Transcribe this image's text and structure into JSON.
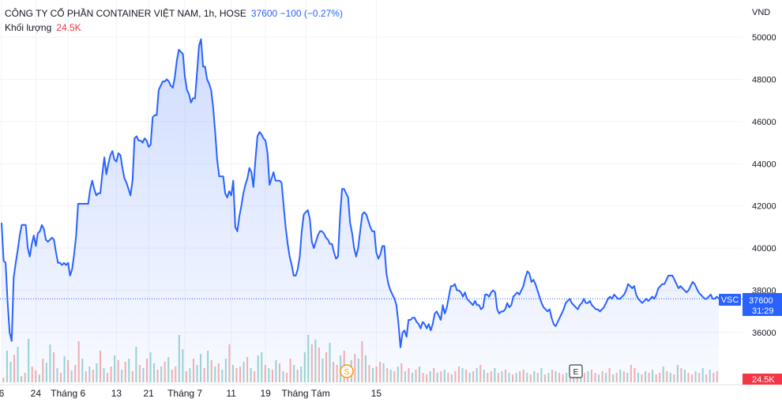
{
  "header": {
    "symbol_title": "CÔNG TY CỔ PHẦN CONTAINER VIỆT NAM, 1h, HOSE",
    "price_info": "37600  −100 (−0.27%)",
    "volume_label": "Khối lượng",
    "volume_value": "24.5K"
  },
  "currency": "VND",
  "current": {
    "ticker": "VSC",
    "price": "37600",
    "countdown": "31:29",
    "volume": "24.5K"
  },
  "markers": {
    "split": "S",
    "earnings": "E"
  },
  "colors": {
    "line": "#2962ff",
    "up_volume": "#26a69a",
    "down_volume": "#ef5350",
    "grid": "#f0f3fa",
    "axis_text": "#131722"
  },
  "chart_data": {
    "type": "area",
    "y_ticks": [
      "50000",
      "48000",
      "46000",
      "44000",
      "42000",
      "40000",
      "38000",
      "36000"
    ],
    "ylim": [
      34000,
      50000
    ],
    "x_ticks": [
      "6",
      "24",
      "Tháng 6",
      "13",
      "21",
      "Tháng 7",
      "11",
      "19",
      "Tháng Tám",
      "15"
    ],
    "x_tick_index": [
      0,
      17,
      33,
      57,
      73,
      91,
      114,
      131,
      151,
      186
    ],
    "grid": true,
    "price": [
      41200,
      39400,
      39300,
      37400,
      36000,
      35600,
      38600,
      39300,
      39900,
      40600,
      41100,
      41100,
      41100,
      40000,
      39600,
      40200,
      40600,
      40100,
      40700,
      40800,
      41100,
      40900,
      40400,
      40300,
      40400,
      40500,
      40400,
      39800,
      39300,
      39300,
      39200,
      39300,
      39200,
      39300,
      38700,
      39000,
      39700,
      40600,
      42100,
      42100,
      42100,
      42100,
      42100,
      42100,
      42800,
      43200,
      42800,
      42500,
      42600,
      42600,
      43500,
      44300,
      43500,
      44000,
      44400,
      44600,
      44200,
      44100,
      44500,
      44400,
      43800,
      43300,
      43100,
      42800,
      42500,
      43200,
      45200,
      45300,
      45100,
      45100,
      45000,
      45200,
      45100,
      44800,
      44900,
      46200,
      46300,
      46300,
      47500,
      47700,
      47900,
      47900,
      48000,
      47900,
      47700,
      47600,
      48100,
      48900,
      49400,
      49300,
      49200,
      48100,
      47500,
      47300,
      46900,
      47100,
      47100,
      48300,
      49600,
      49900,
      48600,
      48600,
      48000,
      47800,
      47500,
      46700,
      45500,
      44200,
      43400,
      43400,
      43400,
      42600,
      42400,
      42700,
      42500,
      43200,
      41000,
      40800,
      41500,
      42000,
      42600,
      43000,
      43300,
      43800,
      43600,
      42900,
      44200,
      45300,
      45500,
      45400,
      45200,
      45100,
      44500,
      43000,
      43300,
      43600,
      43200,
      43200,
      43200,
      43100,
      42000,
      41000,
      40200,
      39600,
      39200,
      38700,
      38700,
      39000,
      39600,
      40800,
      41600,
      41700,
      41800,
      41400,
      40300,
      40000,
      40300,
      40600,
      40800,
      40800,
      40700,
      40500,
      40400,
      40200,
      40200,
      39800,
      39500,
      39600,
      41500,
      42800,
      42800,
      42600,
      42400,
      41200,
      40700,
      40000,
      39600,
      40000,
      40800,
      41600,
      41700,
      41600,
      41300,
      41000,
      40800,
      40800,
      39800,
      39500,
      39700,
      40100,
      40100,
      38800,
      38300,
      38000,
      37800,
      37600,
      37300,
      36400,
      35300,
      36000,
      36100,
      35800,
      36600,
      36600,
      36700,
      36700,
      36500,
      36400,
      36200,
      36500,
      36400,
      36200,
      36400,
      36100,
      36400,
      36900,
      37000,
      36800,
      36600,
      37300,
      36900,
      37200,
      37700,
      38200,
      38200,
      38300,
      38000,
      38000,
      37900,
      37700,
      37900,
      37600,
      37500,
      37400,
      37300,
      37500,
      37300,
      37300,
      37100,
      37200,
      37800,
      37800,
      37700,
      37900,
      38000,
      37900,
      37100,
      36900,
      37000,
      37000,
      37100,
      37400,
      37200,
      37300,
      37700,
      37800,
      37900,
      37800,
      38000,
      38200,
      38600,
      38900,
      38800,
      38400,
      38500,
      38300,
      38000,
      37700,
      37400,
      37200,
      37100,
      37000,
      37100,
      36700,
      36400,
      36300,
      36500,
      36700,
      36900,
      37100,
      37400,
      37500,
      37600,
      37400,
      37300,
      37200,
      37100,
      37300,
      37400,
      37600,
      37400,
      37400,
      37500,
      37300,
      37200,
      37100,
      37100,
      37000,
      37100,
      37200,
      37400,
      37600,
      37700,
      37600,
      37800,
      37700,
      37600,
      37600,
      37700,
      37800,
      38000,
      38300,
      38200,
      38100,
      38200,
      37800,
      37600,
      37500,
      37400,
      37500,
      37600,
      37500,
      37600,
      37700,
      37600,
      37800,
      38100,
      38200,
      38300,
      38300,
      38500,
      38700,
      38700,
      38700,
      38500,
      38300,
      38100,
      38200,
      38100,
      38000,
      37900,
      38000,
      38200,
      38400,
      38300,
      38100,
      37900,
      37800,
      37700,
      37600,
      37600,
      37700,
      37800,
      37600,
      37600,
      37700,
      37600
    ],
    "volume_heights": [
      6,
      40,
      26,
      35,
      45,
      8,
      12,
      55,
      20,
      15,
      10,
      30,
      25,
      48,
      38,
      18,
      12,
      33,
      28,
      15,
      22,
      52,
      30,
      14,
      20,
      16,
      24,
      40,
      18,
      12,
      20,
      34,
      28,
      16,
      26,
      30,
      14,
      45,
      22,
      18,
      30,
      38,
      24,
      16,
      20,
      26,
      32,
      16,
      20,
      60,
      42,
      14,
      18,
      30,
      22,
      36,
      18,
      40,
      28,
      20,
      24,
      16,
      30,
      48,
      22,
      18,
      20,
      26,
      32,
      18,
      14,
      34,
      38,
      22,
      18,
      16,
      28,
      24,
      14,
      12,
      30,
      22,
      16,
      20,
      38,
      60,
      48,
      54,
      44,
      30,
      38,
      50,
      26,
      22,
      34,
      40,
      18,
      28,
      36,
      30,
      52,
      34,
      22,
      18,
      20,
      26,
      24,
      18,
      16,
      14,
      20,
      24,
      14,
      18,
      12,
      16,
      20,
      12,
      10,
      14,
      18,
      12,
      14,
      16,
      12,
      10,
      14,
      20,
      18,
      16,
      12,
      14,
      18,
      22,
      16,
      12,
      14,
      18,
      12,
      14,
      16,
      12,
      10,
      12,
      14,
      16,
      12,
      10,
      14,
      12,
      18,
      10,
      12,
      16,
      14,
      12,
      10,
      12,
      14,
      16,
      20,
      10,
      12,
      14,
      16,
      12,
      10,
      14,
      12,
      18,
      10,
      12,
      16,
      14,
      12,
      22,
      18,
      12,
      10,
      14,
      12,
      16,
      10,
      12,
      20,
      14,
      12,
      10,
      22,
      18,
      16,
      12,
      10,
      14,
      12,
      18,
      10,
      16,
      12,
      14
    ],
    "volume_up": [
      0,
      1,
      1,
      0,
      1,
      1,
      0,
      1,
      0,
      0,
      1,
      0,
      1,
      1,
      0,
      1,
      0,
      1,
      0,
      1,
      0,
      0,
      1,
      0,
      1,
      0,
      1,
      0,
      1,
      0,
      0,
      1,
      0,
      1,
      0,
      1,
      0,
      1,
      0,
      1,
      0,
      1,
      1,
      0,
      1,
      0,
      1,
      0,
      0,
      1,
      1,
      0,
      1,
      0,
      1,
      1,
      0,
      1,
      0,
      1,
      0,
      1,
      1,
      0,
      1,
      0,
      0,
      1,
      0,
      1,
      0,
      1,
      1,
      0,
      1,
      0,
      1,
      0,
      1,
      0,
      0,
      1,
      0,
      1,
      1,
      1,
      0,
      1,
      0,
      1,
      0,
      1,
      0,
      0,
      1,
      0,
      0,
      1,
      0,
      1,
      0,
      1,
      0,
      1,
      0,
      0,
      1,
      0,
      1,
      0,
      1,
      0,
      1,
      0,
      1,
      0,
      1,
      0,
      0,
      1,
      0,
      1,
      0,
      1,
      0,
      1,
      0,
      0,
      1,
      0,
      1,
      0,
      1,
      0,
      1,
      0,
      0,
      1,
      0,
      1,
      0,
      1,
      0,
      1,
      0,
      0,
      1,
      0,
      1,
      0,
      1,
      0,
      1,
      0,
      1,
      0,
      0,
      1,
      0,
      1,
      0,
      1,
      0,
      1,
      0,
      0,
      1,
      0,
      1,
      0,
      1,
      0,
      1,
      0,
      1,
      0,
      0,
      1,
      0,
      1,
      0,
      1,
      0,
      0,
      1,
      0,
      1,
      0,
      1,
      0,
      1,
      0,
      0,
      1,
      0,
      1,
      0,
      1,
      0,
      0
    ]
  }
}
